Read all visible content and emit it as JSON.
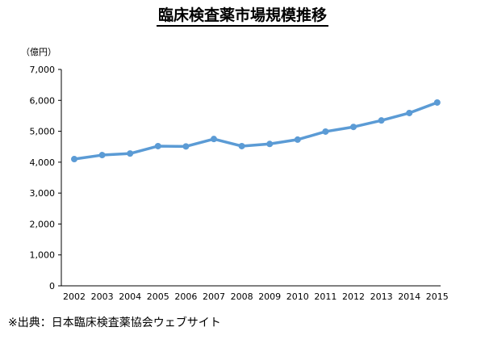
{
  "chart_data": {
    "type": "line",
    "title": "臨床検査薬市場規模推移",
    "ylabel": "（億円）",
    "xlabel": "",
    "categories": [
      "2002",
      "2003",
      "2004",
      "2005",
      "2006",
      "2007",
      "2008",
      "2009",
      "2010",
      "2011",
      "2012",
      "2013",
      "2014",
      "2015"
    ],
    "series": [
      {
        "values": [
          4100,
          4230,
          4280,
          4520,
          4510,
          4750,
          4520,
          4590,
          4730,
          4990,
          5140,
          5350,
          5590,
          5930
        ]
      }
    ],
    "ylim": [
      0,
      7000
    ],
    "y_ticks": [
      0,
      1000,
      2000,
      3000,
      4000,
      5000,
      6000,
      7000
    ],
    "y_tick_labels": [
      "0",
      "1,000",
      "2,000",
      "3,000",
      "4,000",
      "5,000",
      "6,000",
      "7,000"
    ],
    "grid": false,
    "legend": "none",
    "line_color": "#5b9bd5",
    "marker": "circle"
  },
  "footer": {
    "source": "※出典：日本臨床検査薬協会ウェブサイト"
  }
}
